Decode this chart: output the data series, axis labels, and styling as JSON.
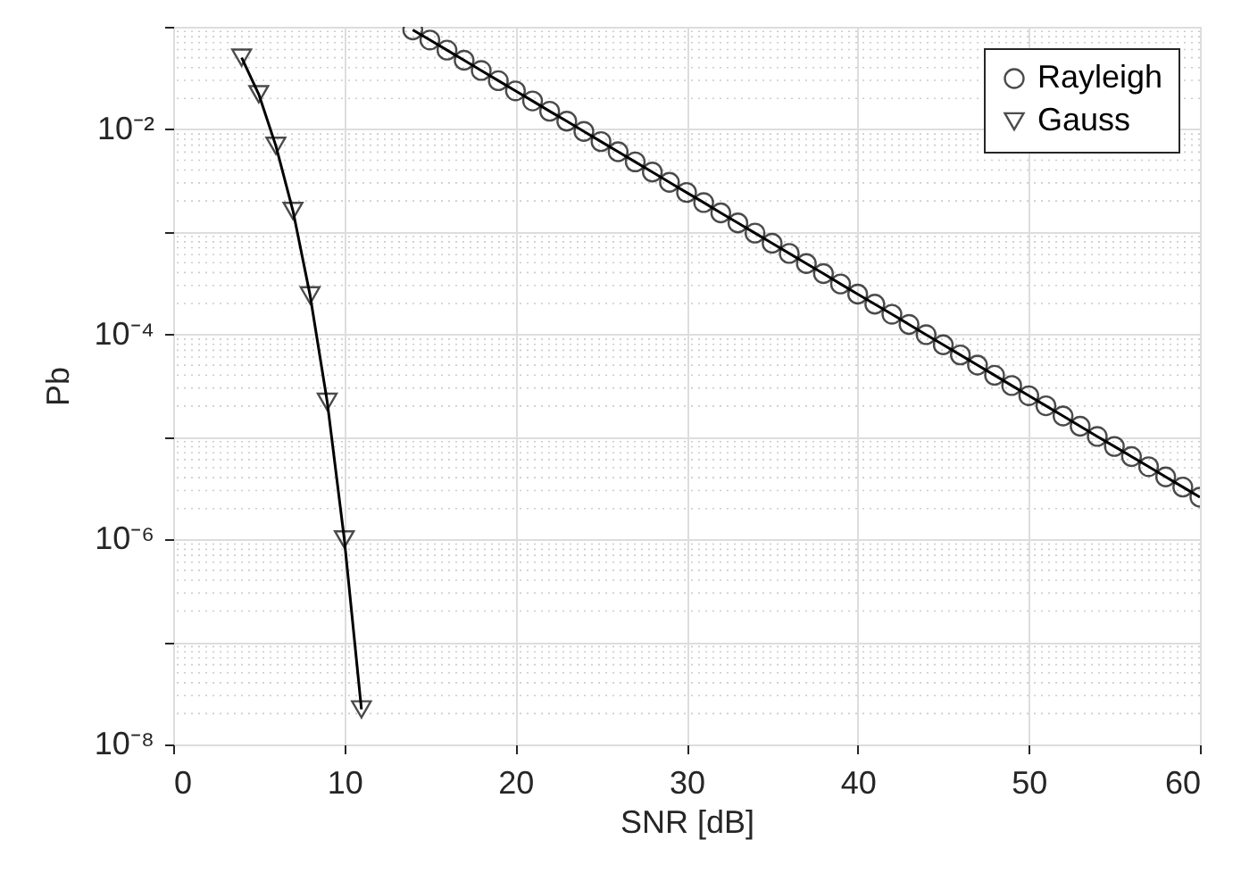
{
  "chart_data": {
    "type": "line",
    "xlabel": "SNR [dB]",
    "ylabel": "Pb",
    "log": "y",
    "grid": true,
    "legend": "top right",
    "xlim": [
      0,
      60
    ],
    "xticks": [
      0,
      10,
      20,
      30,
      40,
      50,
      60
    ],
    "ylim": [
      1e-08,
      0.1
    ],
    "yticks": [
      {
        "value": 1e-08,
        "label": "10⁻⁸"
      },
      {
        "value": 1e-07,
        "label": null
      },
      {
        "value": 1e-06,
        "label": "10⁻⁶"
      },
      {
        "value": 1e-05,
        "label": null
      },
      {
        "value": 0.0001,
        "label": "10⁻⁴"
      },
      {
        "value": 0.001,
        "label": null
      },
      {
        "value": 0.01,
        "label": "10⁻²"
      },
      {
        "value": 0.1,
        "label": null
      }
    ],
    "series": [
      {
        "name": "Rayleigh",
        "color": "#000000",
        "marker": "circle",
        "x": [
          14,
          15,
          16,
          17,
          18,
          19,
          20,
          21,
          22,
          23,
          24,
          25,
          26,
          27,
          28,
          29,
          30,
          31,
          32,
          33,
          34,
          35,
          36,
          37,
          38,
          39,
          40,
          41,
          42,
          43,
          44,
          45,
          46,
          47,
          48,
          49,
          50,
          51,
          52,
          53,
          54,
          55,
          56,
          57,
          58,
          59,
          60
        ],
        "values": [
          0.0933,
          0.0743,
          0.0592,
          0.0471,
          0.0375,
          0.0298,
          0.0237,
          0.0189,
          0.015,
          0.012,
          0.00953,
          0.00759,
          0.00604,
          0.00481,
          0.00383,
          0.00304,
          0.00242,
          0.00193,
          0.00153,
          0.00122,
          0.000972,
          0.000774,
          0.000616,
          0.000491,
          0.000391,
          0.00031,
          0.000247,
          0.000197,
          0.000157,
          0.000125,
          9.93e-05,
          7.91e-05,
          6.3e-05,
          5.01e-05,
          3.99e-05,
          3.17e-05,
          2.52e-05,
          2.01e-05,
          1.6e-05,
          1.27e-05,
          1.01e-05,
          8.07e-06,
          6.43e-06,
          5.12e-06,
          4.07e-06,
          3.24e-06,
          2.58e-06
        ]
      },
      {
        "name": "Gauss",
        "color": "#000000",
        "marker": "triangle",
        "x": [
          4,
          5,
          6,
          7,
          8,
          9,
          10,
          11
        ],
        "values": [
          0.05,
          0.022,
          0.0069,
          0.0016,
          0.00024,
          2.2e-05,
          1e-06,
          2.2e-08
        ]
      }
    ]
  }
}
